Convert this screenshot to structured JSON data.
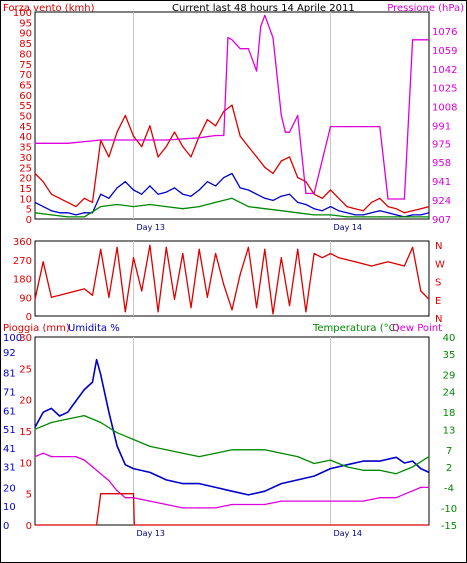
{
  "header": {
    "left_label": "Forza vento (kmh)",
    "title": "Current last 48 hours 14 Aprile 2011",
    "right_label": "Pressione (hPa)"
  },
  "panel3_labels": {
    "rain": "Pioggia (mm)",
    "humidity": "Umidita %",
    "temperature": "Temperatura (°C)",
    "dewpoint": "Dew Point"
  },
  "colors": {
    "wind_gust": "#dd0000",
    "wind_avg": "#0000cc",
    "wind_low": "#008800",
    "pressure": "#dd00dd",
    "direction": "#dd0000",
    "humidity": "#0000cc",
    "temperature": "#008800",
    "dewpoint": "#dd00dd",
    "rain": "#dd0000"
  },
  "chart_data": [
    {
      "type": "line",
      "name": "wind-pressure",
      "x_unit": "hours",
      "xlim": [
        0,
        48
      ],
      "x_ticks": [
        {
          "x": 12,
          "label": "Day 13"
        },
        {
          "x": 36,
          "label": "Day 14"
        }
      ],
      "y_left": {
        "ticks": [
          0,
          5,
          10,
          15,
          20,
          25,
          30,
          35,
          40,
          45,
          50,
          55,
          60,
          65,
          70,
          75,
          80,
          85,
          90,
          95,
          100
        ],
        "ylim": [
          0,
          100
        ]
      },
      "y_right": {
        "ticks": [
          907,
          924,
          941,
          958,
          975,
          991,
          1008,
          1025,
          1042,
          1059,
          1076
        ],
        "ylim": [
          907,
          1093
        ]
      },
      "series": [
        {
          "name": "gust",
          "axis": "left",
          "x": [
            0,
            1,
            2,
            3,
            4,
            5,
            6,
            7,
            8,
            9,
            10,
            11,
            12,
            13,
            14,
            15,
            16,
            17,
            18,
            19,
            20,
            21,
            22,
            23,
            24,
            25,
            26,
            27,
            28,
            29,
            30,
            31,
            32,
            33,
            34,
            35,
            36,
            37,
            38,
            39,
            40,
            41,
            42,
            43,
            44,
            45,
            46,
            47,
            48
          ],
          "values": [
            22,
            18,
            12,
            10,
            8,
            6,
            10,
            8,
            38,
            30,
            42,
            50,
            40,
            35,
            45,
            30,
            35,
            42,
            35,
            30,
            40,
            48,
            45,
            52,
            55,
            40,
            35,
            30,
            25,
            22,
            28,
            30,
            20,
            18,
            12,
            10,
            14,
            10,
            6,
            5,
            4,
            8,
            10,
            6,
            5,
            3,
            4,
            5,
            6
          ]
        },
        {
          "name": "average",
          "axis": "left",
          "x": [
            0,
            1,
            2,
            3,
            4,
            5,
            6,
            7,
            8,
            9,
            10,
            11,
            12,
            13,
            14,
            15,
            16,
            17,
            18,
            19,
            20,
            21,
            22,
            23,
            24,
            25,
            26,
            27,
            28,
            29,
            30,
            31,
            32,
            33,
            34,
            35,
            36,
            37,
            38,
            39,
            40,
            41,
            42,
            43,
            44,
            45,
            46,
            47,
            48
          ],
          "values": [
            8,
            6,
            4,
            3,
            3,
            2,
            3,
            3,
            12,
            10,
            15,
            18,
            14,
            12,
            16,
            12,
            13,
            15,
            12,
            11,
            14,
            18,
            16,
            20,
            22,
            15,
            14,
            12,
            10,
            9,
            11,
            12,
            8,
            7,
            5,
            4,
            6,
            4,
            3,
            2,
            2,
            3,
            4,
            3,
            2,
            1,
            2,
            2,
            3
          ]
        },
        {
          "name": "low",
          "axis": "left",
          "x": [
            0,
            2,
            4,
            6,
            8,
            10,
            12,
            14,
            16,
            18,
            20,
            22,
            24,
            26,
            28,
            30,
            32,
            34,
            36,
            38,
            40,
            42,
            44,
            46,
            48
          ],
          "values": [
            3,
            2,
            1,
            1,
            6,
            7,
            6,
            7,
            6,
            5,
            6,
            8,
            10,
            6,
            5,
            4,
            3,
            2,
            2,
            1,
            1,
            1,
            1,
            1,
            1
          ]
        },
        {
          "name": "pressure",
          "axis": "right",
          "x": [
            0,
            4,
            8,
            12,
            16,
            20,
            22,
            23,
            23.5,
            24,
            25,
            26,
            27,
            27.5,
            28,
            29,
            30,
            30.5,
            31,
            32,
            33,
            34,
            36,
            38,
            40,
            41,
            42,
            43,
            44,
            45,
            46,
            47,
            48
          ],
          "values": [
            975,
            975,
            978,
            978,
            978,
            980,
            982,
            982,
            1070,
            1068,
            1060,
            1060,
            1040,
            1080,
            1090,
            1070,
            1000,
            985,
            985,
            1000,
            930,
            930,
            990,
            990,
            990,
            990,
            990,
            925,
            925,
            925,
            1068,
            1068,
            1068
          ]
        }
      ]
    },
    {
      "type": "line",
      "name": "wind-direction",
      "xlim": [
        0,
        48
      ],
      "y_left": {
        "ticks": [
          0,
          90,
          180,
          270,
          360
        ],
        "ylim": [
          0,
          360
        ]
      },
      "y_right_labels": [
        "N",
        "W",
        "S",
        "E",
        "N"
      ],
      "series": [
        {
          "name": "direction",
          "axis": "left",
          "x": [
            0,
            1,
            2,
            3,
            4,
            5,
            6,
            7,
            8,
            9,
            10,
            11,
            12,
            13,
            14,
            15,
            16,
            17,
            18,
            19,
            20,
            21,
            22,
            23,
            24,
            25,
            26,
            27,
            28,
            29,
            30,
            31,
            32,
            33,
            34,
            35,
            36,
            37,
            38,
            39,
            40,
            41,
            42,
            43,
            44,
            45,
            46,
            47,
            48
          ],
          "values": [
            80,
            260,
            90,
            100,
            110,
            120,
            130,
            100,
            320,
            90,
            330,
            20,
            280,
            120,
            340,
            20,
            330,
            80,
            300,
            40,
            320,
            90,
            300,
            150,
            30,
            200,
            330,
            40,
            320,
            10,
            280,
            50,
            320,
            20,
            300,
            280,
            300,
            280,
            270,
            260,
            250,
            240,
            250,
            260,
            250,
            240,
            330,
            120,
            80
          ]
        }
      ]
    },
    {
      "type": "line",
      "name": "rain-humidity-temperature",
      "xlim": [
        0,
        48
      ],
      "y_left": {
        "ticks": [
          0,
          5,
          10,
          15,
          20,
          25,
          30
        ],
        "ylim": [
          0,
          30
        ],
        "label": "Pioggia (mm)"
      },
      "y_left2": {
        "ticks": [
          0,
          10,
          20,
          31,
          41,
          51,
          61,
          71,
          81,
          92,
          100
        ],
        "ylim": [
          0,
          100
        ],
        "label": "Umidita %"
      },
      "y_right": {
        "ticks": [
          -15,
          -10,
          -4,
          2,
          7,
          13,
          18,
          24,
          29,
          35,
          40
        ],
        "ylim": [
          -15,
          40
        ],
        "label": "Temperatura (°C)"
      },
      "series": [
        {
          "name": "humidity",
          "axis": "left2",
          "x": [
            0,
            1,
            2,
            3,
            4,
            5,
            6,
            7,
            7.5,
            8,
            9,
            10,
            11,
            12,
            14,
            16,
            18,
            20,
            22,
            24,
            26,
            28,
            30,
            32,
            34,
            36,
            38,
            40,
            42,
            44,
            45,
            46,
            47,
            48
          ],
          "values": [
            52,
            60,
            62,
            58,
            60,
            66,
            72,
            76,
            88,
            80,
            60,
            42,
            32,
            30,
            28,
            24,
            22,
            22,
            20,
            18,
            16,
            18,
            22,
            24,
            26,
            30,
            32,
            34,
            34,
            36,
            33,
            34,
            30,
            28
          ]
        },
        {
          "name": "temperature",
          "axis": "right",
          "x": [
            0,
            2,
            4,
            6,
            8,
            10,
            12,
            14,
            16,
            18,
            20,
            22,
            24,
            26,
            28,
            30,
            32,
            34,
            36,
            38,
            40,
            42,
            44,
            46,
            48
          ],
          "values": [
            13,
            15,
            16,
            17,
            15,
            12,
            10,
            8,
            7,
            6,
            5,
            6,
            7,
            7,
            7,
            6,
            5,
            3,
            4,
            2,
            1,
            1,
            0,
            2,
            5
          ]
        },
        {
          "name": "dewpoint",
          "axis": "right",
          "x": [
            0,
            1,
            2,
            3,
            4,
            5,
            6,
            7,
            8,
            9,
            10,
            11,
            12,
            14,
            16,
            18,
            20,
            22,
            24,
            26,
            28,
            30,
            32,
            34,
            36,
            38,
            40,
            42,
            44,
            45,
            46,
            47,
            48
          ],
          "values": [
            5,
            6,
            5,
            5,
            5,
            5,
            4,
            2,
            0,
            -2,
            -5,
            -7,
            -7,
            -8,
            -9,
            -10,
            -10,
            -10,
            -9,
            -9,
            -9,
            -8,
            -8,
            -8,
            -8,
            -8,
            -8,
            -7,
            -7,
            -6,
            -5,
            -4,
            -4
          ]
        },
        {
          "name": "rain",
          "axis": "left",
          "x": [
            0,
            7.5,
            8,
            12,
            12.1,
            48
          ],
          "values": [
            0,
            0,
            5,
            5,
            0,
            0
          ]
        }
      ]
    }
  ]
}
